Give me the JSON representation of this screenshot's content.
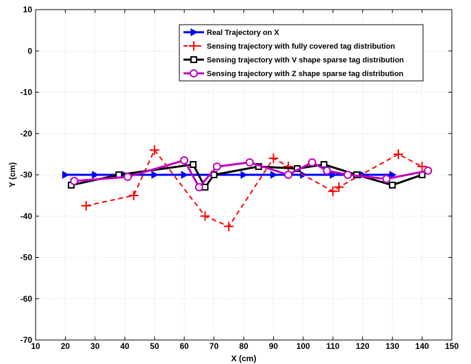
{
  "chart_data": {
    "type": "line",
    "title": "",
    "xlabel": "X (cm)",
    "ylabel": "Y (cm)",
    "xlim": [
      10,
      150
    ],
    "ylim": [
      -70,
      10
    ],
    "xticks": [
      10,
      20,
      30,
      40,
      50,
      60,
      70,
      80,
      90,
      100,
      110,
      120,
      130,
      140,
      150
    ],
    "yticks": [
      10,
      0,
      -10,
      -20,
      -30,
      -40,
      -50,
      -60,
      -70
    ],
    "grid": true,
    "legend_position": "top-right",
    "series": [
      {
        "name": "Real Trajectory on X",
        "color": "#0000ff",
        "line_style": "solid",
        "marker": "triangle-right",
        "x": [
          20,
          30,
          40,
          50,
          60,
          70,
          80,
          90,
          100,
          110,
          120,
          130
        ],
        "y": [
          -30,
          -30,
          -30,
          -30,
          -30,
          -30,
          -30,
          -30,
          -30,
          -30,
          -30,
          -30
        ]
      },
      {
        "name": "Sensing trajectory with fully covered tag distribution",
        "color": "#ff0000",
        "line_style": "dashed",
        "marker": "plus",
        "x": [
          27,
          43,
          50,
          67,
          75,
          90,
          95,
          110,
          112,
          132,
          140
        ],
        "y": [
          -37.5,
          -35,
          -24,
          -40,
          -42.5,
          -26,
          -28,
          -34,
          -33,
          -25,
          -28
        ]
      },
      {
        "name": "Sensing trajectory with V shape sparse tag distribution",
        "color": "#000000",
        "line_style": "solid",
        "marker": "square",
        "x": [
          22,
          38,
          63,
          67,
          70,
          85,
          98,
          107,
          118,
          130,
          140
        ],
        "y": [
          -32.5,
          -30,
          -27.5,
          -33,
          -30,
          -28,
          -28.5,
          -27.5,
          -30,
          -32.5,
          -30
        ]
      },
      {
        "name": "Sensing trajectory with Z shape sparse tag distribution",
        "color": "#bf00bf",
        "line_style": "solid",
        "marker": "circle",
        "x": [
          23,
          41,
          60,
          65,
          71,
          82,
          95,
          103,
          108,
          115,
          128,
          142
        ],
        "y": [
          -31.5,
          -30.5,
          -26.5,
          -33,
          -28,
          -27,
          -30,
          -27,
          -29,
          -30,
          -31,
          -29
        ]
      }
    ]
  }
}
